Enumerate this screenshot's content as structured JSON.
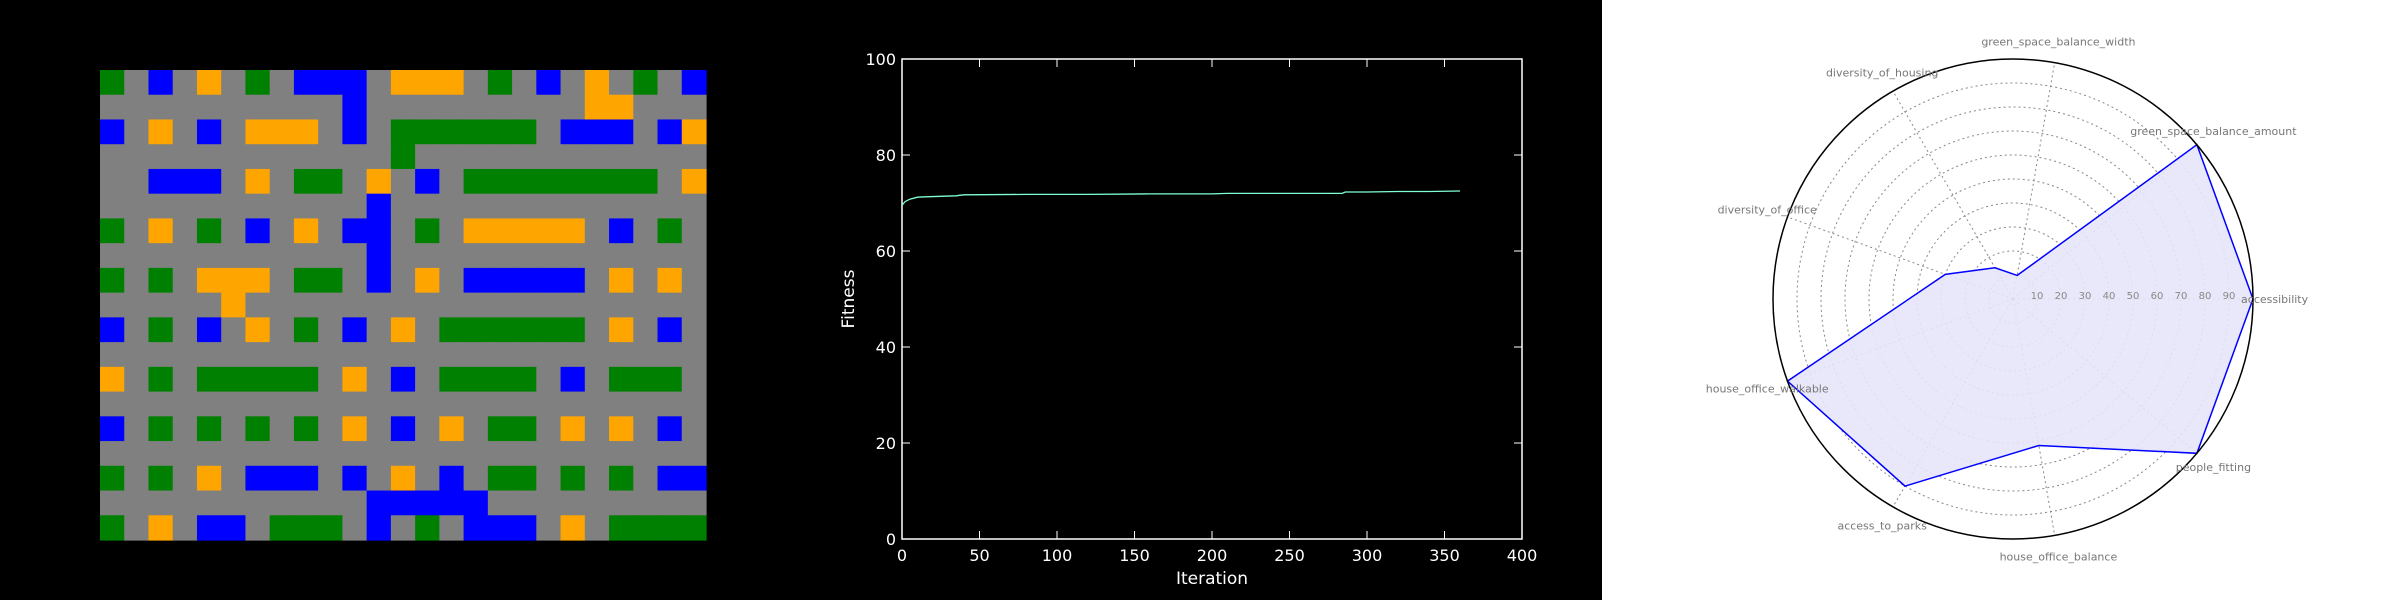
{
  "colors": {
    "background": "#000000",
    "road": "#808080",
    "green_space": "#008000",
    "housing": "#0000ff",
    "office": "#ffa500",
    "fitness_line": "#7fffd4",
    "radar_line": "#0000ff",
    "radar_fill": "#e6e6fa"
  },
  "chart_data": [
    {
      "type": "heatmap",
      "cols": 25,
      "rows": 19,
      "legend": {
        "G": "road",
        "V": "green_space",
        "B": "housing",
        "O": "office"
      },
      "grid": [
        "VGBGOGVGBBBGOOOGVGBGOGVGB",
        "GGGGGGGGGGBGGGGGGGGGOOGGG",
        "BGOGBGOOOGBGVVVVVVGBBBGBO",
        "GGGGGGGGGGGGVGGGGGGGGGGGG",
        "GGBBBGOGVVGOGBGVVVVVVVVGO",
        "GGGGGGGGGGGBGGGGGGGGGGGGG",
        "VGOGVGBGOGBBGVGOOOOOGBGVG",
        "GGGGGGGGGGGBGGGGGGGGGGGGG",
        "VGVGOOOGVVGBGOGBBBBBGOGOG",
        "GGGGGOGGGGGGGGGGGGGGGGGGG",
        "BGVGBGOGVGBGOGVVVVVVGOGBG",
        "GGGGGGGGGGGGGGGGGGGGGGGGG",
        "OGVGVVVVVGOGBGVVVVGBGVVVG",
        "GGGGGGGGGGGGGGGGGGGGGGGGG",
        "BGVGVGVGVGOGBGOGVVGOGOGBG",
        "GGGGGGGGGGGGGGGGGGGGGGGGG",
        "VGVGOGBBBGBGOGBGVVGVGVGBB",
        "GGGGGGGGGGGBBBBBGGGGGGGGG",
        "VGOGBBGVVVGBGVGBBBGOGVVVV"
      ]
    },
    {
      "type": "line",
      "xlabel": "Iteration",
      "ylabel": "Fitness",
      "xlim": [
        0,
        400
      ],
      "ylim": [
        0,
        100
      ],
      "xticks": [
        "0",
        "50",
        "100",
        "150",
        "200",
        "250",
        "300",
        "350",
        "400"
      ],
      "yticks": [
        "0",
        "20",
        "40",
        "60",
        "80",
        "100"
      ],
      "x": [
        0,
        2,
        5,
        10,
        15,
        25,
        35,
        37,
        40,
        80,
        120,
        160,
        200,
        210,
        240,
        284,
        286,
        300,
        320,
        340,
        360
      ],
      "y": [
        69.5,
        70.3,
        70.8,
        71.2,
        71.3,
        71.4,
        71.5,
        71.6,
        71.7,
        71.8,
        71.8,
        71.9,
        71.9,
        72.0,
        72.0,
        72.0,
        72.3,
        72.3,
        72.4,
        72.4,
        72.5
      ]
    },
    {
      "type": "radar",
      "rmax": 100,
      "rticks": [
        "10",
        "20",
        "30",
        "40",
        "50",
        "60",
        "70",
        "80",
        "90"
      ],
      "axes": [
        "accessibility",
        "green_space_balance_amount",
        "green_space_balance_width",
        "diversity_of_housing",
        "diversity_of_office",
        "house_office_walkable",
        "access_to_parks",
        "house_office_balance",
        "people_fitting"
      ],
      "values": [
        100,
        100,
        10,
        15,
        30,
        100,
        90,
        62,
        100
      ]
    }
  ]
}
